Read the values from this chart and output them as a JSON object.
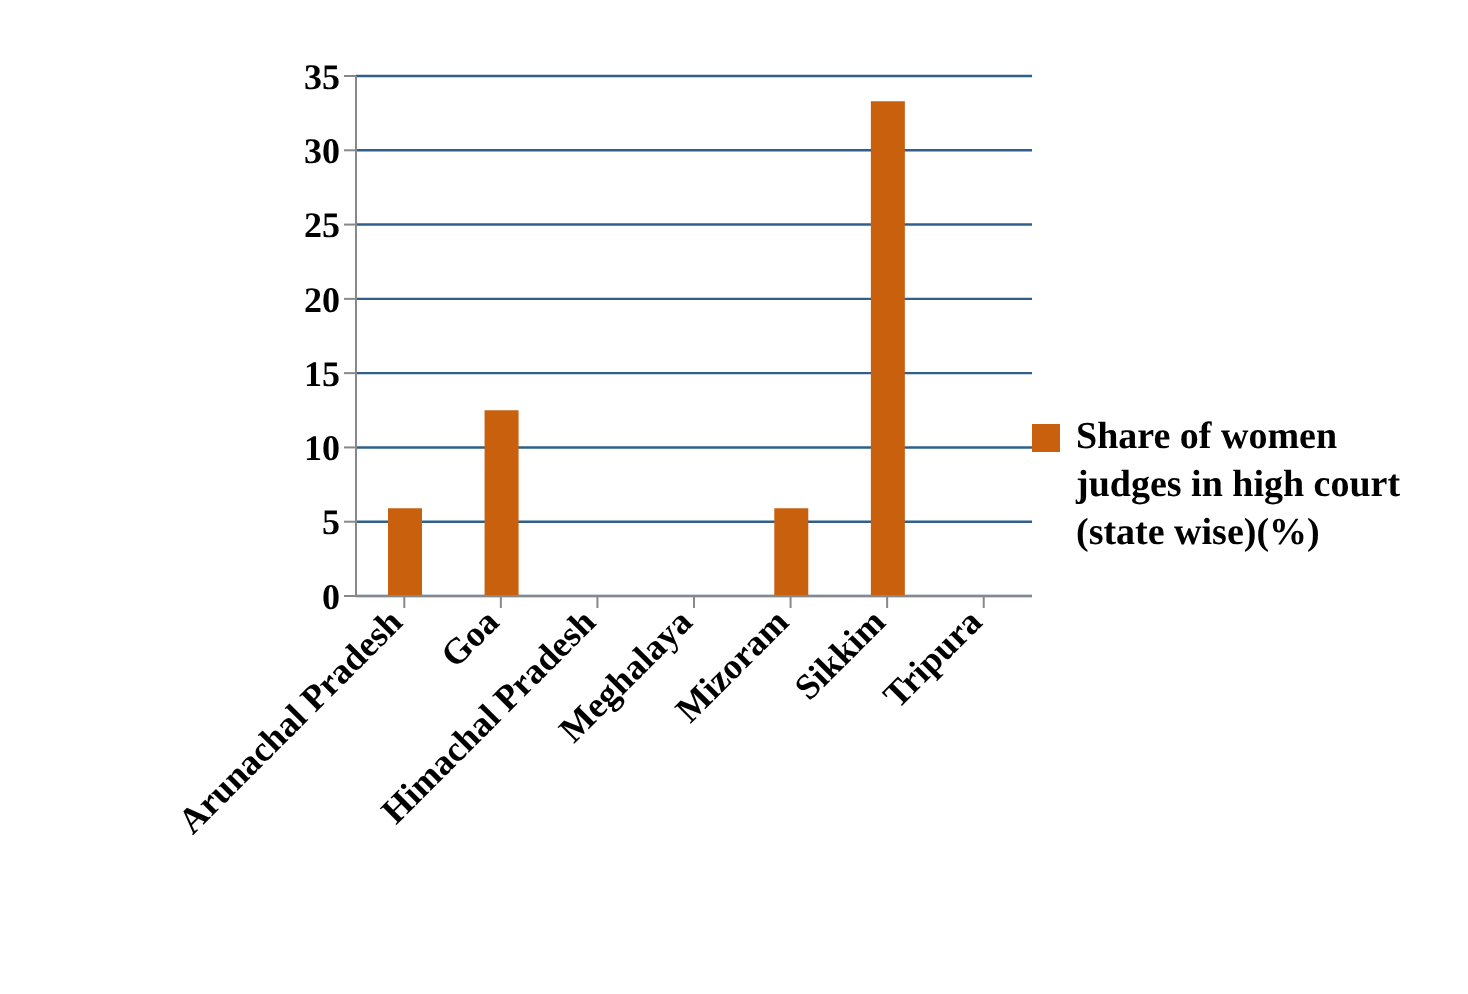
{
  "chart_data": {
    "type": "bar",
    "categories": [
      "Arunachal Pradesh",
      "Goa",
      "Himachal Pradesh",
      "Meghalaya",
      "Mizoram",
      "Sikkim",
      "Tripura"
    ],
    "series": [
      {
        "name": "Share of women judges in high court (state wise)(%)",
        "color": "#c8600e",
        "values": [
          5.9,
          12.5,
          0,
          0,
          5.9,
          33.3,
          0
        ]
      }
    ],
    "ylim": [
      0,
      35
    ],
    "yticks": [
      0,
      5,
      10,
      15,
      20,
      25,
      30,
      35
    ],
    "grid": "y",
    "legend": "right"
  }
}
